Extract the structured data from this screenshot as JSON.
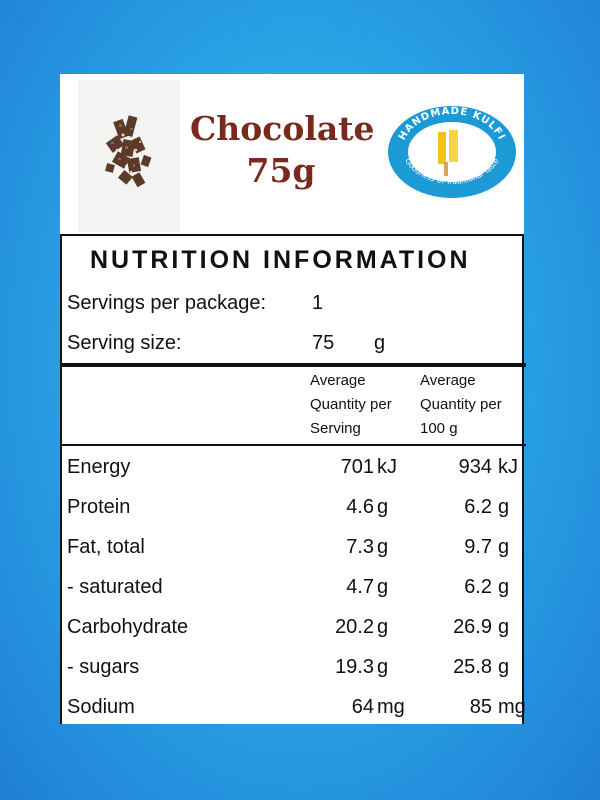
{
  "product": {
    "name": "Chocolate",
    "weight": "75g"
  },
  "logo": {
    "brand": "HANDMADE KULFI",
    "tagline": "Goodness of Traditional Taste",
    "color": "#1b9ad6",
    "accent": "#f2c21b"
  },
  "panel": {
    "title": "NUTRITION INFORMATION",
    "servings_label": "Servings per package:",
    "servings_value": "1",
    "serving_size_label": "Serving size:",
    "serving_size_value": "75",
    "serving_size_unit": "g",
    "column_serving": [
      "Average",
      "Quantity per",
      "Serving"
    ],
    "column_100g": [
      "Average",
      "Quantity per",
      "100 g"
    ],
    "rows": [
      {
        "name": "Energy",
        "per_serving": "701",
        "unit_serving": "kJ",
        "per_100g": "934",
        "unit_100g": "kJ"
      },
      {
        "name": "Protein",
        "per_serving": "4.6",
        "unit_serving": "g",
        "per_100g": "6.2",
        "unit_100g": "g"
      },
      {
        "name": "Fat, total",
        "per_serving": "7.3",
        "unit_serving": "g",
        "per_100g": "9.7",
        "unit_100g": "g"
      },
      {
        "name": "- saturated",
        "per_serving": "4.7",
        "unit_serving": "g",
        "per_100g": "6.2",
        "unit_100g": "g"
      },
      {
        "name": "Carbohydrate",
        "per_serving": "20.2",
        "unit_serving": "g",
        "per_100g": "26.9",
        "unit_100g": "g"
      },
      {
        "name": "- sugars",
        "per_serving": "19.3",
        "unit_serving": "g",
        "per_100g": "25.8",
        "unit_100g": "g"
      },
      {
        "name": "Sodium",
        "per_serving": "64",
        "unit_serving": "mg",
        "per_100g": "85",
        "unit_100g": "mg"
      }
    ]
  }
}
